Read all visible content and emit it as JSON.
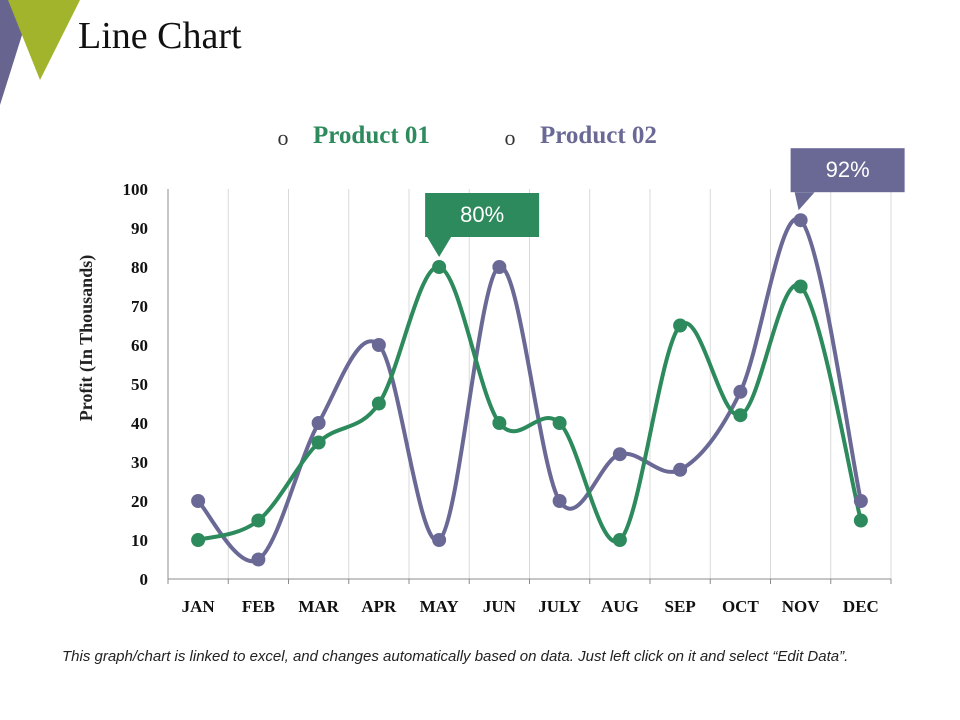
{
  "slide": {
    "title": "Line Chart",
    "footnote": "This graph/chart is linked to excel, and changes automatically based on data. Just left click on it and select “Edit Data”.",
    "accent_colors": [
      "#a2b42b",
      "#67658f"
    ]
  },
  "chart_data": {
    "type": "line",
    "smooth": true,
    "categories": [
      "JAN",
      "FEB",
      "MAR",
      "APR",
      "MAY",
      "JUN",
      "JULY",
      "AUG",
      "SEP",
      "OCT",
      "NOV",
      "DEC"
    ],
    "series": [
      {
        "name": "Product 01",
        "color": "#2d8a5c",
        "values": [
          10,
          15,
          35,
          45,
          80,
          40,
          40,
          10,
          65,
          42,
          75,
          15
        ]
      },
      {
        "name": "Product 02",
        "color": "#6a6996",
        "values": [
          20,
          5,
          40,
          60,
          10,
          80,
          20,
          32,
          28,
          48,
          92,
          20
        ]
      }
    ],
    "ylabel": "Profit (In Thousands)",
    "ylim": [
      0,
      100
    ],
    "yticks": [
      0,
      10,
      20,
      30,
      40,
      50,
      60,
      70,
      80,
      90,
      100
    ],
    "grid": "vertical",
    "legend": "top-center",
    "legend_marker": "o",
    "annotations": [
      {
        "series": 0,
        "category": "MAY",
        "text": "80%"
      },
      {
        "series": 1,
        "category": "NOV",
        "text": "92%"
      }
    ]
  }
}
